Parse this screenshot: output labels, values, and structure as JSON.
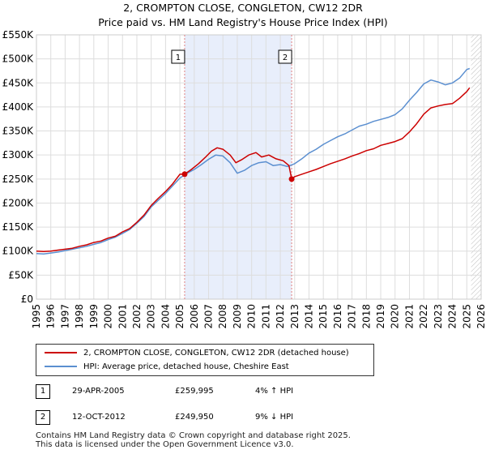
{
  "header": {
    "title": "2, CROMPTON CLOSE, CONGLETON, CW12 2DR",
    "subtitle": "Price paid vs. HM Land Registry's House Price Index (HPI)"
  },
  "colors": {
    "property_line": "#cc0000",
    "hpi_line": "#5b8fd0",
    "shade": "#e8eefb",
    "marker_dash": "#e08080",
    "grid": "#dddddd",
    "hatch": "#bbbbbb"
  },
  "chart_data": {
    "type": "line",
    "title": "2, CROMPTON CLOSE, CONGLETON, CW12 2DR",
    "subtitle": "Price paid vs. HM Land Registry's House Price Index (HPI)",
    "xlim": [
      1995,
      2026
    ],
    "ylim": [
      0,
      550000
    ],
    "grid": true,
    "x_ticks": [
      "1995",
      "1996",
      "1997",
      "1998",
      "1999",
      "2000",
      "2001",
      "2002",
      "2003",
      "2004",
      "2005",
      "2006",
      "2007",
      "2008",
      "2009",
      "2010",
      "2011",
      "2012",
      "2013",
      "2014",
      "2015",
      "2016",
      "2017",
      "2018",
      "2019",
      "2020",
      "2021",
      "2022",
      "2023",
      "2024",
      "2025",
      "2026"
    ],
    "y_ticks": [
      {
        "value": 0,
        "label": "£0"
      },
      {
        "value": 50000,
        "label": "£50K"
      },
      {
        "value": 100000,
        "label": "£100K"
      },
      {
        "value": 150000,
        "label": "£150K"
      },
      {
        "value": 200000,
        "label": "£200K"
      },
      {
        "value": 250000,
        "label": "£250K"
      },
      {
        "value": 300000,
        "label": "£300K"
      },
      {
        "value": 350000,
        "label": "£350K"
      },
      {
        "value": 400000,
        "label": "£400K"
      },
      {
        "value": 450000,
        "label": "£450K"
      },
      {
        "value": 500000,
        "label": "£500K"
      },
      {
        "value": 550000,
        "label": "£550K"
      }
    ],
    "shaded_region": [
      2005.33,
      2012.79
    ],
    "future_region_start": 2025.3,
    "markers": [
      {
        "label": "1",
        "x": 2005.33,
        "y": 259995
      },
      {
        "label": "2",
        "x": 2012.79,
        "y": 249950
      }
    ],
    "series": [
      {
        "name": "2, CROMPTON CLOSE, CONGLETON, CW12 2DR (detached house)",
        "x": [
          1995.0,
          1995.5,
          1996.0,
          1996.5,
          1997.0,
          1997.5,
          1998.0,
          1998.5,
          1999.0,
          1999.5,
          2000.0,
          2000.5,
          2001.0,
          2001.5,
          2002.0,
          2002.5,
          2003.0,
          2003.5,
          2004.0,
          2004.5,
          2005.0,
          2005.33,
          2005.8,
          2006.3,
          2006.8,
          2007.2,
          2007.6,
          2008.0,
          2008.5,
          2008.9,
          2009.3,
          2009.8,
          2010.3,
          2010.7,
          2011.2,
          2011.7,
          2012.2,
          2012.6,
          2012.79,
          2013.0,
          2013.5,
          2014.0,
          2014.5,
          2015.0,
          2015.5,
          2016.0,
          2016.5,
          2017.0,
          2017.5,
          2018.0,
          2018.5,
          2019.0,
          2019.5,
          2020.0,
          2020.5,
          2021.0,
          2021.5,
          2022.0,
          2022.5,
          2023.0,
          2023.5,
          2024.0,
          2024.5,
          2025.0,
          2025.2
        ],
        "y": [
          100000,
          99000,
          100000,
          102000,
          104000,
          106000,
          110000,
          113000,
          118000,
          121000,
          127000,
          131000,
          140000,
          147000,
          160000,
          175000,
          195000,
          210000,
          224000,
          240000,
          260000,
          259995,
          270000,
          282000,
          296000,
          308000,
          315000,
          312000,
          300000,
          284000,
          290000,
          300000,
          305000,
          296000,
          300000,
          292000,
          288000,
          278000,
          249950,
          255000,
          260000,
          265000,
          270000,
          276000,
          282000,
          287000,
          292000,
          298000,
          303000,
          309000,
          313000,
          320000,
          324000,
          328000,
          334000,
          348000,
          365000,
          385000,
          398000,
          402000,
          405000,
          407000,
          418000,
          432000,
          440000
        ]
      },
      {
        "name": "HPI: Average price, detached house, Cheshire East",
        "x": [
          1995.0,
          1995.5,
          1996.0,
          1996.5,
          1997.0,
          1997.5,
          1998.0,
          1998.5,
          1999.0,
          1999.5,
          2000.0,
          2000.5,
          2001.0,
          2001.5,
          2002.0,
          2002.5,
          2003.0,
          2003.5,
          2004.0,
          2004.5,
          2005.0,
          2005.5,
          2006.0,
          2006.5,
          2007.0,
          2007.5,
          2008.0,
          2008.5,
          2009.0,
          2009.5,
          2010.0,
          2010.5,
          2011.0,
          2011.5,
          2012.0,
          2012.5,
          2013.0,
          2013.5,
          2014.0,
          2014.5,
          2015.0,
          2015.5,
          2016.0,
          2016.5,
          2017.0,
          2017.5,
          2018.0,
          2018.5,
          2019.0,
          2019.5,
          2020.0,
          2020.5,
          2021.0,
          2021.5,
          2022.0,
          2022.5,
          2023.0,
          2023.5,
          2024.0,
          2024.5,
          2025.0,
          2025.2
        ],
        "y": [
          95000,
          94000,
          96000,
          98000,
          101000,
          104000,
          107000,
          110000,
          114000,
          118000,
          124000,
          129000,
          137000,
          145000,
          158000,
          172000,
          192000,
          206000,
          220000,
          236000,
          252000,
          262000,
          270000,
          280000,
          291000,
          300000,
          298000,
          284000,
          262000,
          268000,
          278000,
          284000,
          286000,
          278000,
          280000,
          276000,
          282000,
          292000,
          304000,
          312000,
          322000,
          330000,
          338000,
          344000,
          352000,
          360000,
          364000,
          370000,
          374000,
          378000,
          384000,
          396000,
          414000,
          430000,
          448000,
          456000,
          452000,
          446000,
          450000,
          460000,
          478000,
          480000
        ]
      }
    ]
  },
  "legend": {
    "property_label": "2, CROMPTON CLOSE, CONGLETON, CW12 2DR (detached house)",
    "hpi_label": "HPI: Average price, detached house, Cheshire East"
  },
  "sales": [
    {
      "badge": "1",
      "date": "29-APR-2005",
      "price": "£259,995",
      "hpi": "4% ↑ HPI"
    },
    {
      "badge": "2",
      "date": "12-OCT-2012",
      "price": "£249,950",
      "hpi": "9% ↓ HPI"
    }
  ],
  "footer": {
    "line1": "Contains HM Land Registry data © Crown copyright and database right 2025.",
    "line2": "This data is licensed under the Open Government Licence v3.0."
  }
}
